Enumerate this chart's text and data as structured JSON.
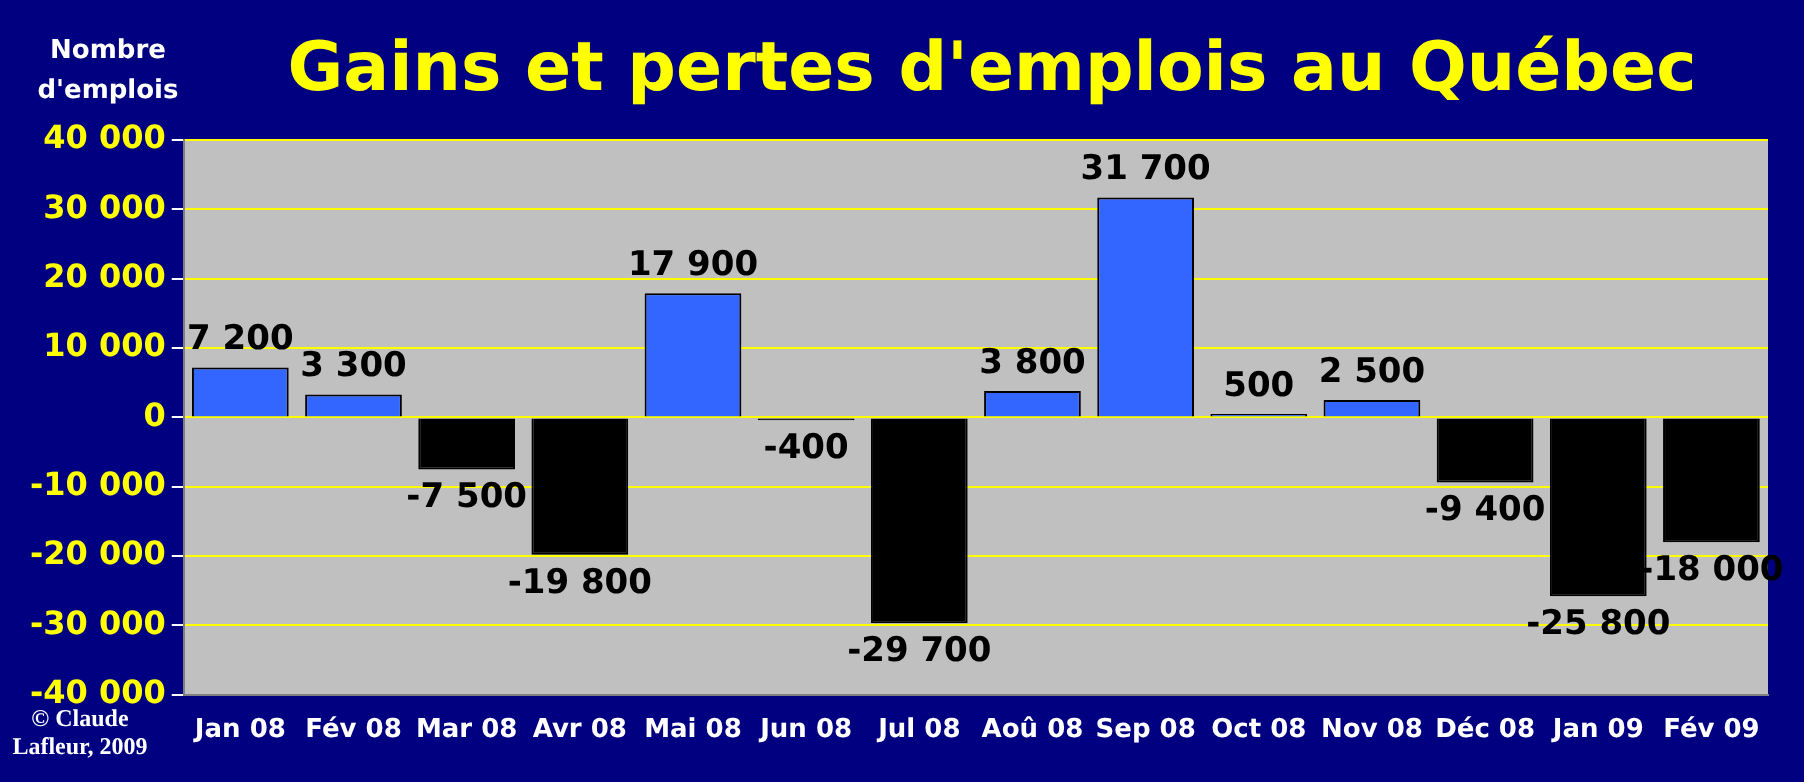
{
  "chart_data": {
    "type": "bar",
    "title": "Gains et pertes d'emplois au Québec",
    "ylabel": "Nombre d'emplois",
    "annotations": [
      "© Claude Lafleur, 2009"
    ],
    "categories": [
      "Jan 08",
      "Fév 08",
      "Mar 08",
      "Avr 08",
      "Mai 08",
      "Jun 08",
      "Jul 08",
      "Aoû 08",
      "Sep 08",
      "Oct 08",
      "Nov 08",
      "Déc 08",
      "Jan 09",
      "Fév 09"
    ],
    "values": [
      7200,
      3300,
      -7500,
      -19800,
      17900,
      -400,
      -29700,
      3800,
      31700,
      500,
      2500,
      -9400,
      -25800,
      -18000
    ],
    "value_labels": [
      "7 200",
      "3 300",
      "-7 500",
      "-19 800",
      "17 900",
      "-400",
      "-29 700",
      "3 800",
      "31 700",
      "500",
      "2 500",
      "-9 400",
      "-25 800",
      "-18 000"
    ],
    "colors": [
      "#3366ff",
      "#3366ff",
      "#000000",
      "#000000",
      "#3366ff",
      "#000000",
      "#000000",
      "#3366ff",
      "#3366ff",
      "#3366ff",
      "#3366ff",
      "#000000",
      "#000000",
      "#000000"
    ],
    "ylim": [
      -40000,
      40000
    ],
    "yticks": [
      {
        "value": -40000,
        "label": "-40 000"
      },
      {
        "value": -30000,
        "label": "-30 000"
      },
      {
        "value": -20000,
        "label": "-20 000"
      },
      {
        "value": -10000,
        "label": "-10 000"
      },
      0,
      {
        "value": 10000,
        "label": "10 000"
      },
      {
        "value": 20000,
        "label": "20 000"
      },
      {
        "value": 30000,
        "label": "30 000"
      },
      {
        "value": 40000,
        "label": "40 000"
      }
    ],
    "grid": "y",
    "legend": false
  }
}
